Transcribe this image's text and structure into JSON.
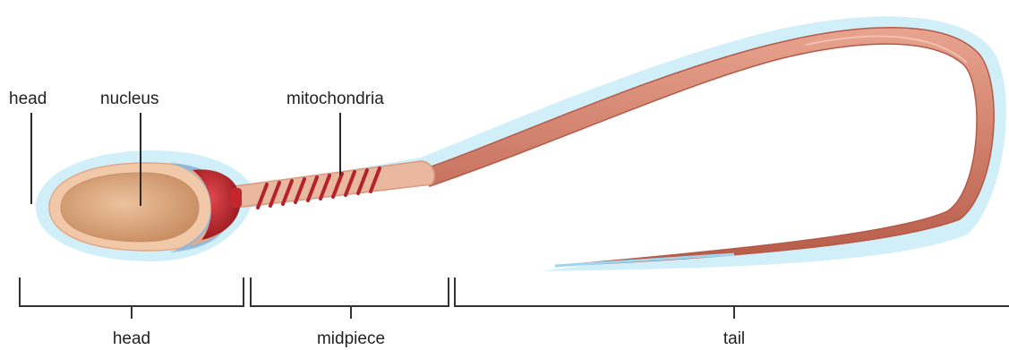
{
  "diagram": {
    "labels": {
      "head_top": "head",
      "nucleus": "nucleus",
      "mitochondria": "mitochondria"
    },
    "sections": {
      "head": "head",
      "midpiece": "midpiece",
      "tail": "tail"
    },
    "colors": {
      "membrane": "#bfe6f5",
      "head_outer": "#e9b99a",
      "nucleus": "#d9a277",
      "acrosome_blue": "#8fb6d8",
      "neck_red": "#b5202a",
      "tail_core": "#c86a58",
      "mito_coil": "#b3232c"
    }
  }
}
